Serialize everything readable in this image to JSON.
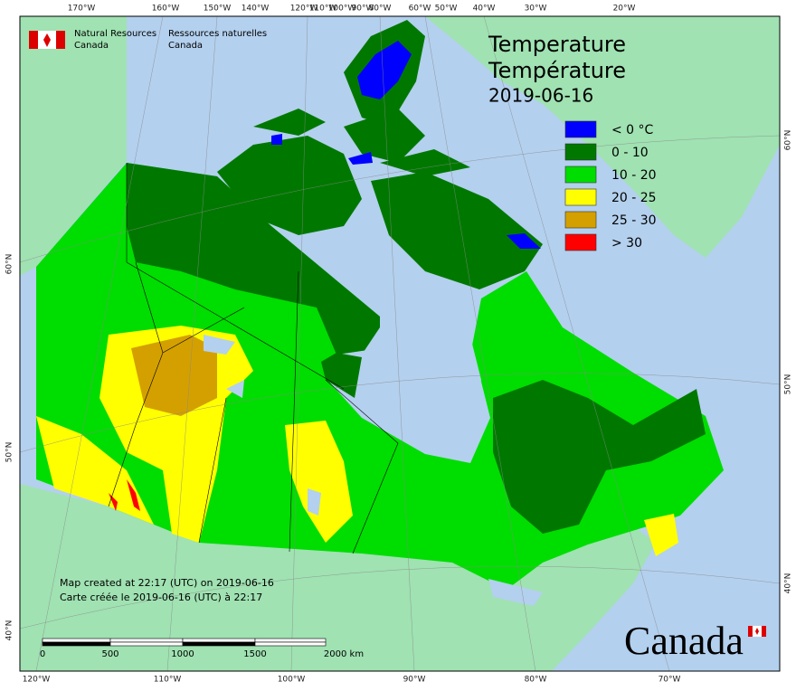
{
  "header": {
    "agency_en": [
      "Natural Resources",
      "Canada"
    ],
    "agency_fr": [
      "Ressources naturelles",
      "Canada"
    ]
  },
  "title": [
    "Temperature",
    "Température",
    "2019-06-16"
  ],
  "legend": [
    {
      "label": "< 0 °C",
      "color": "#0000ff"
    },
    {
      "label": "0 - 10",
      "color": "#007800"
    },
    {
      "label": "10 - 20",
      "color": "#00dd00"
    },
    {
      "label": "20 - 25",
      "color": "#ffff00"
    },
    {
      "label": "25 - 30",
      "color": "#d4a000"
    },
    {
      "label": "> 30",
      "color": "#ff0000"
    }
  ],
  "credits": [
    "Map created at 22:17 (UTC) on 2019-06-16",
    "Carte créée le 2019-06-16 (UTC) à 22:17"
  ],
  "scale_bar": [
    "0",
    "500",
    "1000",
    "1500",
    "2000 km"
  ],
  "graticule": {
    "top": [
      "170°W",
      "160°W",
      "150°W",
      "140°W",
      "120°W",
      "110°W",
      "100°W",
      "90°W",
      "80°W",
      "60°W",
      "50°W",
      "40°W",
      "30°W",
      "20°W"
    ],
    "bottom": [
      "120°W",
      "110°W",
      "100°W",
      "90°W",
      "80°W",
      "70°W"
    ],
    "left": [
      "60°N",
      "50°N",
      "40°N"
    ],
    "right": [
      "60°N",
      "50°N",
      "40°N"
    ]
  },
  "wordmark": "Canada"
}
